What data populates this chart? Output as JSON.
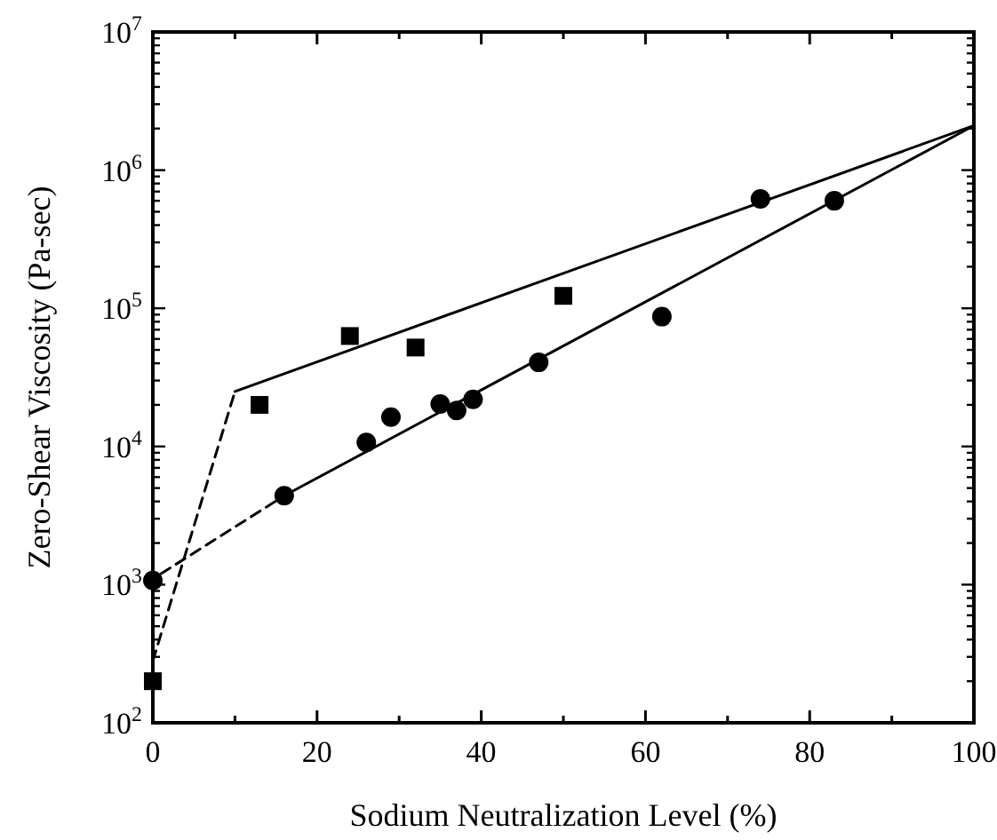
{
  "chart_data": {
    "type": "scatter",
    "xlabel": "Sodium Neutralization Level (%)",
    "ylabel": "Zero-Shear Viscosity (Pa-sec)",
    "log": "y",
    "xlim": [
      0,
      100
    ],
    "ylim": [
      100,
      10000000
    ],
    "xticks": [
      0,
      {
        "value": 10,
        "label": null
      },
      20,
      {
        "value": 30,
        "label": null
      },
      40,
      {
        "value": 50,
        "label": null
      },
      60,
      {
        "value": 70,
        "label": null
      },
      80,
      {
        "value": 90,
        "label": null
      },
      100
    ],
    "yticks": [
      {
        "value": 100,
        "label": "10$^{2}$"
      },
      {
        "value": 200,
        "label": null
      },
      {
        "value": 300,
        "label": null
      },
      {
        "value": 400,
        "label": null
      },
      {
        "value": 500,
        "label": null
      },
      {
        "value": 600,
        "label": null
      },
      {
        "value": 700,
        "label": null
      },
      {
        "value": 800,
        "label": null
      },
      {
        "value": 900,
        "label": null
      },
      {
        "value": 1000,
        "label": "10$^{3}$"
      },
      {
        "value": 2000,
        "label": null
      },
      {
        "value": 3000,
        "label": null
      },
      {
        "value": 4000,
        "label": null
      },
      {
        "value": 5000,
        "label": null
      },
      {
        "value": 6000,
        "label": null
      },
      {
        "value": 7000,
        "label": null
      },
      {
        "value": 8000,
        "label": null
      },
      {
        "value": 9000,
        "label": null
      },
      {
        "value": 10000,
        "label": "10$^{4}$"
      },
      {
        "value": 20000,
        "label": null
      },
      {
        "value": 30000,
        "label": null
      },
      {
        "value": 40000,
        "label": null
      },
      {
        "value": 50000,
        "label": null
      },
      {
        "value": 60000,
        "label": null
      },
      {
        "value": 70000,
        "label": null
      },
      {
        "value": 80000,
        "label": null
      },
      {
        "value": 90000,
        "label": null
      },
      {
        "value": 100000,
        "label": "10$^{5}$"
      },
      {
        "value": 200000,
        "label": null
      },
      {
        "value": 300000,
        "label": null
      },
      {
        "value": 400000,
        "label": null
      },
      {
        "value": 500000,
        "label": null
      },
      {
        "value": 600000,
        "label": null
      },
      {
        "value": 700000,
        "label": null
      },
      {
        "value": 800000,
        "label": null
      },
      {
        "value": 900000,
        "label": null
      },
      {
        "value": 1000000,
        "label": "10$^{6}$"
      },
      {
        "value": 2000000,
        "label": null
      },
      {
        "value": 3000000,
        "label": null
      },
      {
        "value": 4000000,
        "label": null
      },
      {
        "value": 5000000,
        "label": null
      },
      {
        "value": 6000000,
        "label": null
      },
      {
        "value": 7000000,
        "label": null
      },
      {
        "value": 8000000,
        "label": null
      },
      {
        "value": 9000000,
        "label": null
      },
      {
        "value": 10000000,
        "label": "10$^{7}$"
      }
    ],
    "grid": false,
    "series": [
      {
        "marker": "square",
        "color": "#000000",
        "x": [
          0,
          13,
          24,
          32,
          50
        ],
        "values": [
          200,
          20000,
          63000,
          52000,
          123000
        ]
      },
      {
        "marker": "circle",
        "color": "#000000",
        "x": [
          0,
          16,
          26,
          29,
          35,
          37,
          39,
          47,
          62,
          74,
          83
        ],
        "values": [
          1070,
          4400,
          10700,
          16300,
          20300,
          18200,
          21900,
          40600,
          87000,
          620000,
          600000
        ]
      },
      {
        "type": "line",
        "line_style": "solid",
        "color": "#000000",
        "x": [
          10,
          100
        ],
        "values": [
          25000,
          2100000
        ]
      },
      {
        "type": "line",
        "line_style": "solid",
        "color": "#000000",
        "x": [
          16,
          100
        ],
        "values": [
          4400,
          2100000
        ]
      },
      {
        "type": "line",
        "line_style": "dashed",
        "color": "#000000",
        "x": [
          0,
          10
        ],
        "values": [
          280,
          25000
        ]
      },
      {
        "type": "line",
        "line_style": "dashed",
        "color": "#000000",
        "x": [
          1,
          16
        ],
        "values": [
          1200,
          4400
        ]
      }
    ]
  }
}
